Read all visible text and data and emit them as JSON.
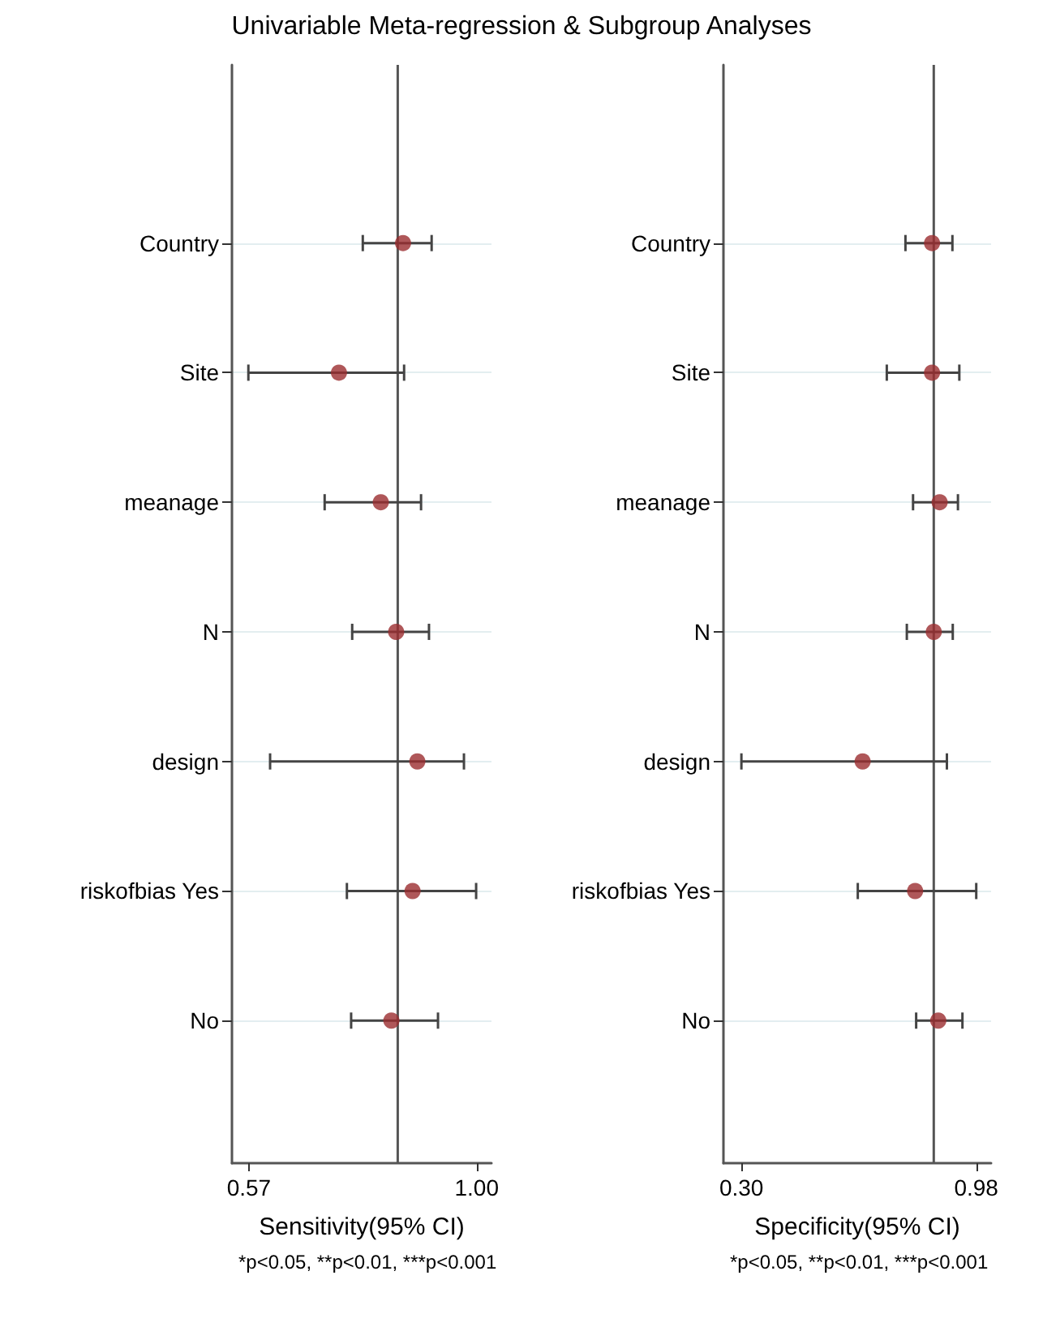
{
  "chart_data": [
    {
      "type": "scatter",
      "title": "Univariable Meta-regression & Subgroup Analyses",
      "xlabel": "Sensitivity(95% CI)",
      "annotations": [
        "*p<0.05, **p<0.01, ***p<0.001"
      ],
      "orientation": "horizontal",
      "categories": [
        "Country",
        "Site",
        "meanage",
        "N",
        "design",
        "riskofbias Yes",
        "No"
      ],
      "series": [
        {
          "color": "#9b2d30",
          "values": [
            0.861,
            0.74,
            0.819,
            0.848,
            0.888,
            0.879,
            0.839
          ],
          "errors": [
            [
              0.785,
              0.915
            ],
            [
              0.569,
              0.863
            ],
            [
              0.713,
              0.895
            ],
            [
              0.765,
              0.91
            ],
            [
              0.61,
              0.976
            ],
            [
              0.755,
              0.999
            ],
            [
              0.763,
              0.927
            ]
          ]
        }
      ],
      "xlim": [
        0.538,
        1.028
      ],
      "xticks": [
        0.57,
        {
          "value": 1,
          "label": "1.00"
        }
      ],
      "ref_lines": [
        {
          "axis": "x",
          "value": 0.851,
          "color": "#555555"
        }
      ],
      "grid": "y",
      "marker": "circle"
    },
    {
      "type": "scatter",
      "xlabel": "Specificity(95% CI)",
      "annotations": [
        "*p<0.05, **p<0.01, ***p<0.001"
      ],
      "orientation": "horizontal",
      "categories": [
        "Country",
        "Site",
        "meanage",
        "N",
        "design",
        "riskofbias Yes",
        "No"
      ],
      "series": [
        {
          "color": "#9b2d30",
          "values": [
            0.852,
            0.852,
            0.874,
            0.857,
            0.651,
            0.803,
            0.87
          ],
          "errors": [
            [
              0.775,
              0.911
            ],
            [
              0.721,
              0.931
            ],
            [
              0.797,
              0.927
            ],
            [
              0.779,
              0.912
            ],
            [
              0.3,
              0.895
            ],
            [
              0.637,
              0.98
            ],
            [
              0.806,
              0.94
            ]
          ]
        }
      ],
      "xlim": [
        0.248,
        1.023
      ],
      "xticks": [
        {
          "value": 0.3,
          "label": "0.30"
        },
        0.98
      ],
      "ref_lines": [
        {
          "axis": "x",
          "value": 0.857,
          "color": "#555555"
        }
      ],
      "grid": "y",
      "marker": "circle"
    }
  ]
}
